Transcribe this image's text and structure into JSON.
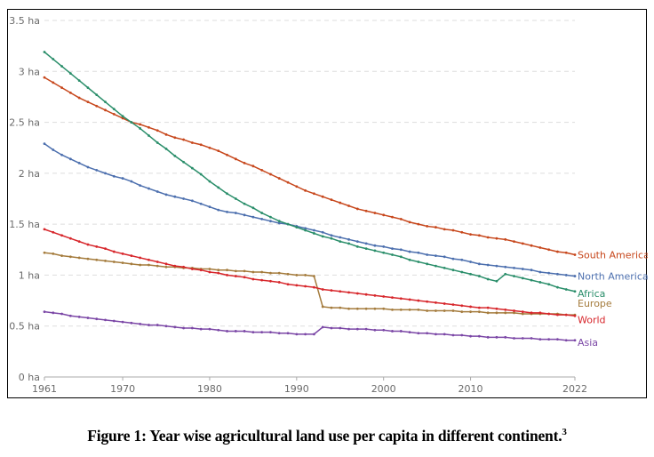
{
  "caption": {
    "text": "Figure 1: Year wise agricultural land use per capita in different continent.",
    "superscript": "3"
  },
  "chart_data": {
    "type": "line",
    "title": "",
    "xlabel": "",
    "ylabel": "",
    "xlim": [
      1961,
      2022
    ],
    "ylim": [
      0,
      3.5
    ],
    "grid": "horizontal-dashed",
    "legend": "inline-right-end",
    "x_ticks": [
      1961,
      1970,
      1980,
      1990,
      2000,
      2010,
      2022
    ],
    "y_ticks": [
      {
        "value": 0,
        "label": "0 ha"
      },
      {
        "value": 0.5,
        "label": "0.5 ha"
      },
      {
        "value": 1,
        "label": "1 ha"
      },
      {
        "value": 1.5,
        "label": "1.5 ha"
      },
      {
        "value": 2,
        "label": "2 ha"
      },
      {
        "value": 2.5,
        "label": "2.5 ha"
      },
      {
        "value": 3,
        "label": "3 ha"
      },
      {
        "value": 3.5,
        "label": "3.5 ha"
      }
    ],
    "series": [
      {
        "name": "South America",
        "color": "#c7471c",
        "start_year": 1961,
        "values": [
          2.94,
          2.89,
          2.84,
          2.79,
          2.74,
          2.7,
          2.66,
          2.62,
          2.58,
          2.54,
          2.5,
          2.48,
          2.45,
          2.42,
          2.38,
          2.35,
          2.33,
          2.3,
          2.28,
          2.25,
          2.22,
          2.18,
          2.14,
          2.1,
          2.07,
          2.03,
          1.99,
          1.95,
          1.91,
          1.87,
          1.83,
          1.8,
          1.77,
          1.74,
          1.71,
          1.68,
          1.65,
          1.63,
          1.61,
          1.59,
          1.57,
          1.55,
          1.52,
          1.5,
          1.48,
          1.47,
          1.45,
          1.44,
          1.42,
          1.4,
          1.39,
          1.37,
          1.36,
          1.35,
          1.33,
          1.31,
          1.29,
          1.27,
          1.25,
          1.23,
          1.22,
          1.2
        ]
      },
      {
        "name": "North America",
        "color": "#4c6fae",
        "start_year": 1961,
        "values": [
          2.29,
          2.23,
          2.18,
          2.14,
          2.1,
          2.06,
          2.03,
          2.0,
          1.97,
          1.95,
          1.92,
          1.88,
          1.85,
          1.82,
          1.79,
          1.77,
          1.75,
          1.73,
          1.7,
          1.67,
          1.64,
          1.62,
          1.61,
          1.59,
          1.57,
          1.55,
          1.53,
          1.51,
          1.5,
          1.48,
          1.46,
          1.44,
          1.42,
          1.39,
          1.37,
          1.35,
          1.33,
          1.31,
          1.29,
          1.28,
          1.26,
          1.25,
          1.23,
          1.22,
          1.2,
          1.19,
          1.18,
          1.16,
          1.15,
          1.13,
          1.11,
          1.1,
          1.09,
          1.08,
          1.07,
          1.06,
          1.05,
          1.03,
          1.02,
          1.01,
          1.0,
          0.99
        ]
      },
      {
        "name": "Africa",
        "color": "#2a8e6a",
        "start_year": 1961,
        "values": [
          3.19,
          3.12,
          3.05,
          2.98,
          2.91,
          2.84,
          2.77,
          2.7,
          2.63,
          2.56,
          2.5,
          2.44,
          2.37,
          2.3,
          2.24,
          2.17,
          2.11,
          2.05,
          1.99,
          1.92,
          1.86,
          1.8,
          1.75,
          1.7,
          1.66,
          1.61,
          1.57,
          1.53,
          1.5,
          1.47,
          1.44,
          1.41,
          1.38,
          1.36,
          1.33,
          1.31,
          1.28,
          1.26,
          1.24,
          1.22,
          1.2,
          1.18,
          1.15,
          1.13,
          1.11,
          1.09,
          1.07,
          1.05,
          1.03,
          1.01,
          0.99,
          0.96,
          0.94,
          1.01,
          0.99,
          0.97,
          0.95,
          0.93,
          0.91,
          0.88,
          0.86,
          0.84
        ]
      },
      {
        "name": "Europe",
        "color": "#a47b3c",
        "start_year": 1961,
        "values": [
          1.22,
          1.21,
          1.19,
          1.18,
          1.17,
          1.16,
          1.15,
          1.14,
          1.13,
          1.12,
          1.11,
          1.1,
          1.1,
          1.09,
          1.08,
          1.08,
          1.07,
          1.07,
          1.06,
          1.06,
          1.05,
          1.05,
          1.04,
          1.04,
          1.03,
          1.03,
          1.02,
          1.02,
          1.01,
          1.0,
          1.0,
          0.99,
          0.69,
          0.68,
          0.68,
          0.67,
          0.67,
          0.67,
          0.67,
          0.67,
          0.66,
          0.66,
          0.66,
          0.66,
          0.65,
          0.65,
          0.65,
          0.65,
          0.64,
          0.64,
          0.64,
          0.63,
          0.63,
          0.63,
          0.63,
          0.62,
          0.62,
          0.62,
          0.62,
          0.62,
          0.61,
          0.61
        ]
      },
      {
        "name": "World",
        "color": "#d7262b",
        "start_year": 1961,
        "values": [
          1.45,
          1.42,
          1.39,
          1.36,
          1.33,
          1.3,
          1.28,
          1.26,
          1.23,
          1.21,
          1.19,
          1.17,
          1.15,
          1.13,
          1.11,
          1.09,
          1.08,
          1.06,
          1.05,
          1.03,
          1.02,
          1.0,
          0.99,
          0.98,
          0.96,
          0.95,
          0.94,
          0.93,
          0.91,
          0.9,
          0.89,
          0.88,
          0.86,
          0.85,
          0.84,
          0.83,
          0.82,
          0.81,
          0.8,
          0.79,
          0.78,
          0.77,
          0.76,
          0.75,
          0.74,
          0.73,
          0.72,
          0.71,
          0.7,
          0.69,
          0.68,
          0.68,
          0.67,
          0.66,
          0.65,
          0.64,
          0.63,
          0.63,
          0.62,
          0.61,
          0.61,
          0.6
        ]
      },
      {
        "name": "Asia",
        "color": "#7b47a6",
        "start_year": 1961,
        "values": [
          0.64,
          0.63,
          0.62,
          0.6,
          0.59,
          0.58,
          0.57,
          0.56,
          0.55,
          0.54,
          0.53,
          0.52,
          0.51,
          0.51,
          0.5,
          0.49,
          0.48,
          0.48,
          0.47,
          0.47,
          0.46,
          0.45,
          0.45,
          0.45,
          0.44,
          0.44,
          0.44,
          0.43,
          0.43,
          0.42,
          0.42,
          0.42,
          0.49,
          0.48,
          0.48,
          0.47,
          0.47,
          0.47,
          0.46,
          0.46,
          0.45,
          0.45,
          0.44,
          0.43,
          0.43,
          0.42,
          0.42,
          0.41,
          0.41,
          0.4,
          0.4,
          0.39,
          0.39,
          0.39,
          0.38,
          0.38,
          0.38,
          0.37,
          0.37,
          0.37,
          0.36,
          0.36
        ]
      }
    ]
  }
}
